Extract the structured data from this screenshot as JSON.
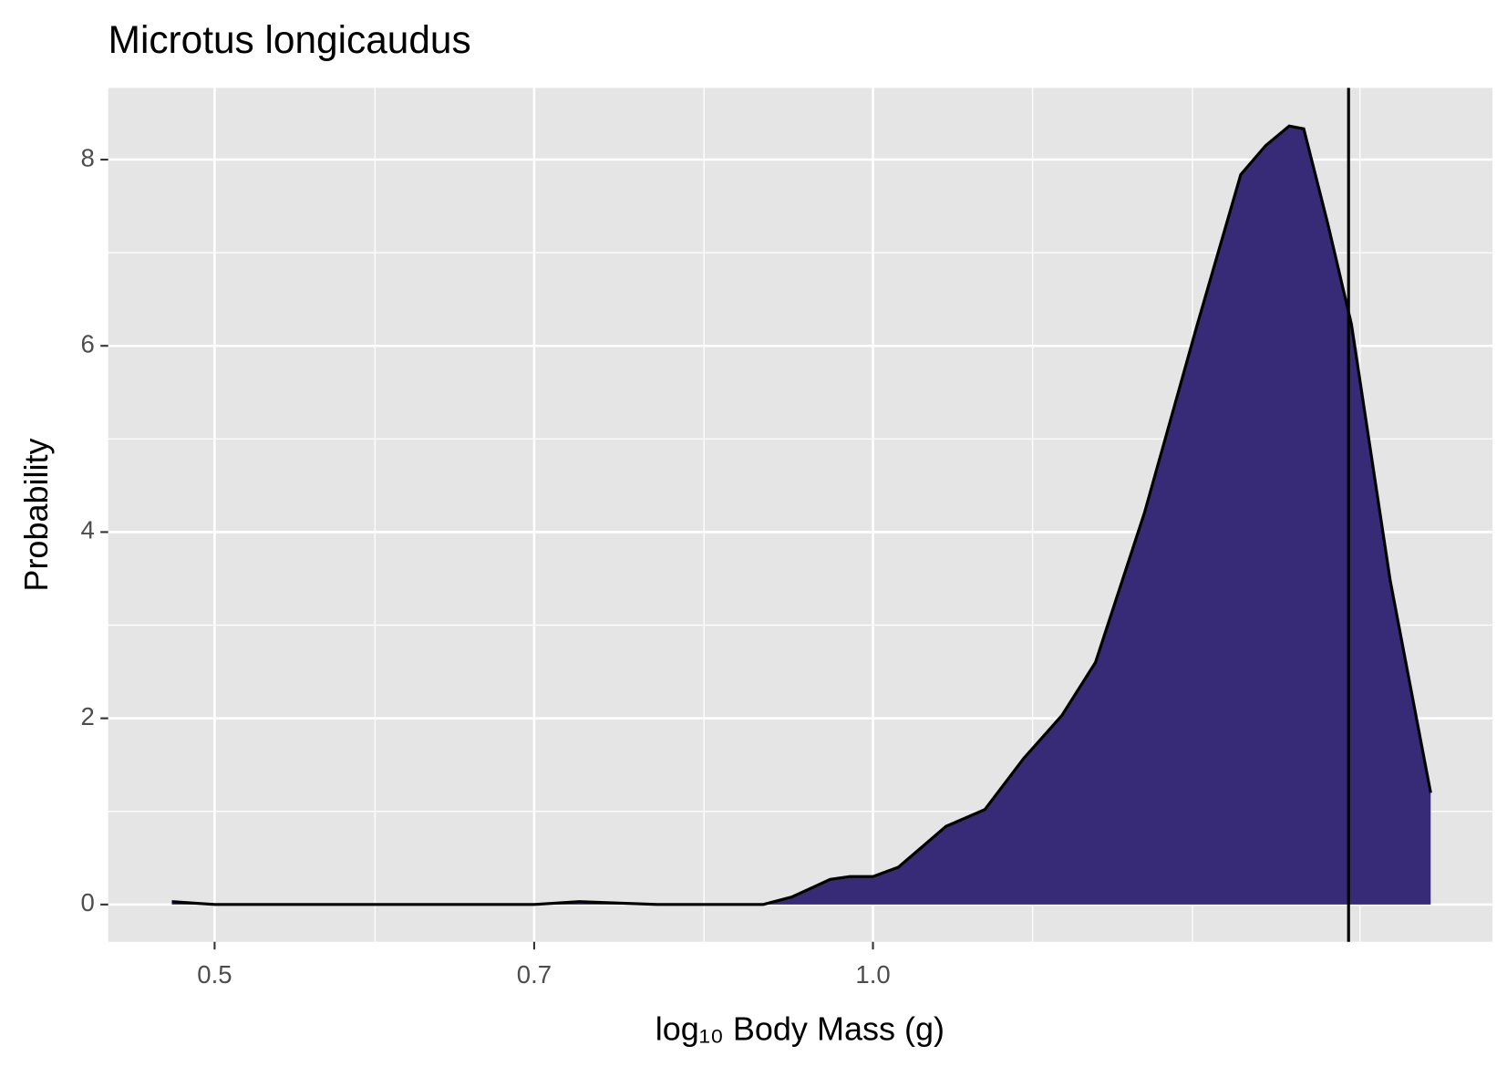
{
  "chart_data": {
    "type": "density",
    "title": "Microtus longicaudus",
    "xlabel": "log₁₀ Body Mass (g)",
    "ylabel": "Probability",
    "log_x": true,
    "x": [
      0.478,
      0.5,
      0.618,
      0.7,
      0.734,
      0.797,
      0.891,
      0.918,
      0.956,
      0.976,
      1.0,
      1.027,
      1.08,
      1.125,
      1.172,
      1.22,
      1.264,
      1.331,
      1.407,
      1.473,
      1.512,
      1.55,
      1.574,
      1.614,
      1.655,
      1.724,
      1.799
    ],
    "values": [
      0.03,
      0,
      0,
      0,
      0.03,
      0,
      0,
      0.08,
      0.27,
      0.3,
      0.3,
      0.4,
      0.84,
      1.02,
      1.57,
      2.03,
      2.6,
      4.21,
      6.23,
      7.84,
      8.15,
      8.36,
      8.33,
      7.32,
      6.23,
      3.48,
      1.2
    ],
    "color": "#372b77",
    "vline": 1.65,
    "xlim": [
      0.447,
      1.92
    ],
    "ylim": [
      -0.4,
      8.77
    ],
    "xticks": [
      0.5,
      0.7,
      {
        "value": 1,
        "label": "1.0"
      }
    ],
    "x_minor_grid": [
      0.592,
      0.837,
      1.183,
      1.4,
      1.67
    ],
    "yticks": [
      0,
      2,
      4,
      6,
      8
    ],
    "y_minor_grid": [
      1,
      3,
      5,
      7
    ],
    "grid": true
  }
}
